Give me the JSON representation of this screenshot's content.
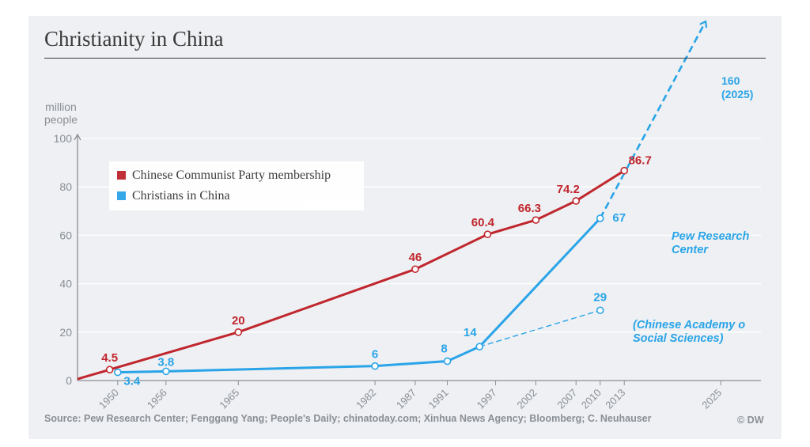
{
  "title": "Christianity in China",
  "unit_line1": "million",
  "unit_line2": "people",
  "legend": [
    {
      "label": "Chinese Communist Party membership",
      "color": "#c0262d"
    },
    {
      "label": "Christians in China",
      "color": "#2aa4e8"
    }
  ],
  "source": "Source: Pew Research Center; Fenggang Yang; People's Daily; chinatoday.com; Xinhua News Agency; Bloomberg; C. Neuhauser",
  "credit": "© DW",
  "chart_data": {
    "type": "line",
    "title": "Christianity in China",
    "ylabel": "million people",
    "ylim": [
      0,
      100
    ],
    "xlim": [
      1945,
      2030
    ],
    "y_ticks": [
      0,
      20,
      40,
      60,
      80,
      100
    ],
    "x_ticks": [
      1950,
      1956,
      1965,
      1982,
      1987,
      1991,
      1997,
      2002,
      2007,
      2010,
      2013,
      2025
    ],
    "grid": true,
    "legend_position": "upper-left",
    "series": [
      {
        "name": "Chinese Communist Party membership",
        "color": "#c0262d",
        "x": [
          1949,
          1965,
          1987,
          1996,
          2002,
          2007,
          2013
        ],
        "y": [
          4.5,
          20,
          46,
          60.4,
          66.3,
          74.2,
          86.7
        ],
        "labels": [
          "4.5",
          "20",
          "46",
          "60.4",
          "66.3",
          "74.2",
          "86.7"
        ]
      },
      {
        "name": "Christians in China",
        "color": "#2aa4e8",
        "x": [
          1950,
          1956,
          1982,
          1991,
          1995,
          2010
        ],
        "y": [
          3.4,
          3.8,
          6,
          8,
          14,
          67
        ],
        "labels": [
          "3.4",
          "3.8",
          "6",
          "8",
          "14",
          "67"
        ]
      }
    ],
    "projections": [
      {
        "from": [
          2010,
          67
        ],
        "to": [
          2025,
          160
        ],
        "label": "160 (2025)",
        "color": "#2aa4e8"
      }
    ],
    "alternate_estimate": {
      "from": [
        1995,
        14
      ],
      "to": [
        2010,
        29
      ],
      "label": "29",
      "color": "#2aa4e8"
    },
    "annotations": [
      {
        "text": "Pew Research Center",
        "color": "#2aa4e8"
      },
      {
        "text": "(Chinese Academy of Social Sciences)",
        "color": "#2aa4e8"
      }
    ]
  }
}
